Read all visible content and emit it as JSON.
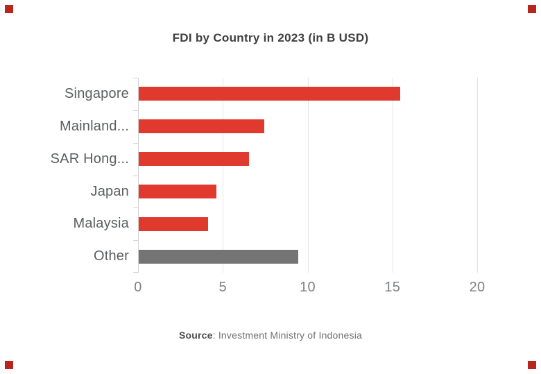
{
  "title": "FDI by Country in 2023 (in B USD)",
  "source": {
    "label": "Source",
    "rest": ": Investment Ministry of Indonesia"
  },
  "colors": {
    "bar_red": "#e03a2e",
    "bar_gray": "#747474",
    "grid": "#e3e3e3",
    "axis": "#d2d2d2",
    "title_text": "#3e3e3e",
    "label_text": "#5b5e61",
    "tick_text": "#7e8184",
    "source_label_text": "#4d4d4d",
    "source_text": "#707070",
    "corner_marker": "#b8251d"
  },
  "chart_data": {
    "type": "bar",
    "orientation": "horizontal",
    "title": "FDI by Country in 2023 (in B USD)",
    "categories": [
      "Singapore",
      "Mainland...",
      "SAR Hong...",
      "Japan",
      "Malaysia",
      "Other"
    ],
    "values": [
      15.4,
      7.4,
      6.5,
      4.6,
      4.1,
      9.4
    ],
    "bar_colors": [
      "#e03a2e",
      "#e03a2e",
      "#e03a2e",
      "#e03a2e",
      "#e03a2e",
      "#747474"
    ],
    "xlabel": "",
    "ylabel": "",
    "xlim": [
      0,
      20
    ],
    "x_ticks": [
      0,
      5,
      10,
      15,
      20
    ],
    "grid": true,
    "legend": false,
    "source": "Source: Investment Ministry of Indonesia"
  }
}
